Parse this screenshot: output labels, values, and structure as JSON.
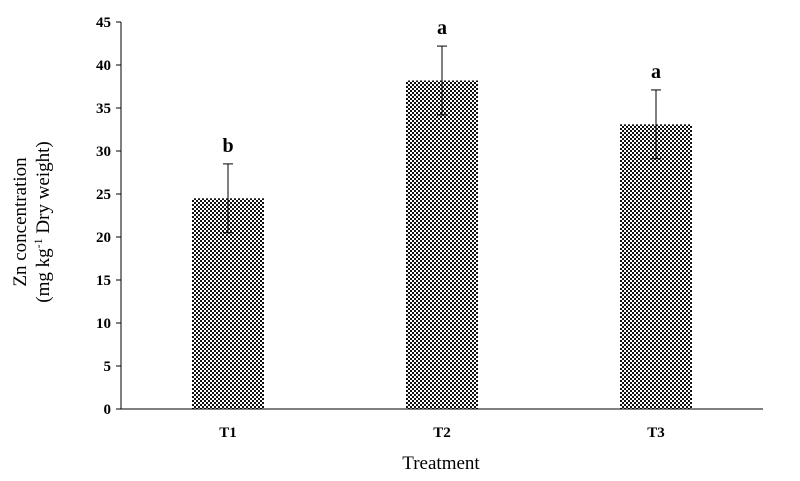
{
  "chart_data": {
    "type": "bar",
    "categories": [
      "T1",
      "T2",
      "T3"
    ],
    "values": [
      24.5,
      38.2,
      33.1
    ],
    "errors": [
      4.0,
      4.0,
      4.0
    ],
    "annotations": [
      "b",
      "a",
      "a"
    ],
    "xlabel": "Treatment",
    "ylabel_line1": "Zn concentration",
    "ylabel_line2_pre": "(mg kg",
    "ylabel_line2_sup": "-1",
    "ylabel_line2_post": " Dry weight)",
    "ylim": [
      0,
      45
    ],
    "yticks": [
      0,
      5,
      10,
      15,
      20,
      25,
      30,
      35,
      40,
      45
    ],
    "grid": false,
    "bar_fill": "checkerboard",
    "colors": {
      "bar_dark": "#111111",
      "bar_light": "#ffffff",
      "axis": "#000000"
    }
  }
}
